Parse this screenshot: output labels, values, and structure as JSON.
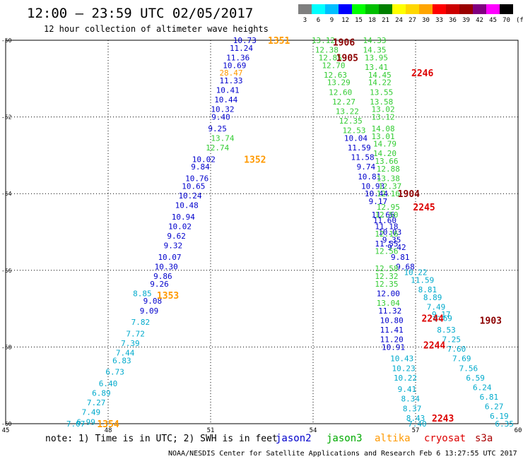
{
  "header": {
    "title": "12:00 – 23:59 UTC 02/05/2017",
    "subtitle": "12 hour collection of altimeter wave heights"
  },
  "colorbar": {
    "labels": [
      "3",
      "6",
      "9",
      "12",
      "15",
      "18",
      "21",
      "24",
      "27",
      "30",
      "33",
      "36",
      "39",
      "42",
      "45",
      "70"
    ],
    "unit": "(ft)",
    "colors": [
      "#7f7f7f",
      "#00ffff",
      "#00bfff",
      "#0000ff",
      "#00ff00",
      "#00bf00",
      "#008000",
      "#ffff00",
      "#ffd700",
      "#ffa500",
      "#ff0000",
      "#cc0000",
      "#990000",
      "#800080",
      "#ff00ff",
      "#000000"
    ]
  },
  "footer": {
    "note": "note: 1) Time is in UTC; 2) SWH is in feet",
    "legend": [
      {
        "name": "jason2",
        "color": "#0000cc"
      },
      {
        "name": "jason3",
        "color": "#00aa00"
      },
      {
        "name": "altika",
        "color": "#ff9900"
      },
      {
        "name": "cryosat",
        "color": "#dd0000"
      },
      {
        "name": "s3a",
        "color": "#aa0000"
      }
    ],
    "credit": "NOAA/NESDIS Center for Satellite Applications and Research    Feb  6 13:27:55 UTC 2017"
  },
  "chart_data": {
    "type": "scatter",
    "x_ticks": [
      "45",
      "48",
      "51",
      "54",
      "57",
      "60"
    ],
    "y_ticks": [
      "-50",
      "-52",
      "-54",
      "-56",
      "-58",
      "-60"
    ],
    "xlim": [
      45,
      60
    ],
    "ylim": [
      -60,
      -50
    ],
    "grid": true,
    "series": [
      {
        "name": "jason2",
        "color": "#0000cc",
        "points": [
          {
            "x": 52.0,
            "y": -50.0,
            "label": "10.73"
          },
          {
            "x": 51.9,
            "y": -50.2,
            "label": "11.24"
          },
          {
            "x": 51.8,
            "y": -50.45,
            "label": "11.36"
          },
          {
            "x": 51.7,
            "y": -50.65,
            "label": "10.69"
          },
          {
            "x": 51.6,
            "y": -51.05,
            "label": "11.33"
          },
          {
            "x": 51.5,
            "y": -51.3,
            "label": "10.41"
          },
          {
            "x": 51.45,
            "y": -51.55,
            "label": "10.44"
          },
          {
            "x": 51.35,
            "y": -51.8,
            "label": "10.32"
          },
          {
            "x": 51.3,
            "y": -52.0,
            "label": "9.40"
          },
          {
            "x": 51.2,
            "y": -52.3,
            "label": "9.25"
          },
          {
            "x": 50.8,
            "y": -53.1,
            "label": "10.02"
          },
          {
            "x": 50.7,
            "y": -53.3,
            "label": "9.84"
          },
          {
            "x": 50.6,
            "y": -53.6,
            "label": "10.76"
          },
          {
            "x": 50.5,
            "y": -53.8,
            "label": "10.65"
          },
          {
            "x": 50.4,
            "y": -54.05,
            "label": "10.24"
          },
          {
            "x": 50.3,
            "y": -54.3,
            "label": "10.48"
          },
          {
            "x": 50.2,
            "y": -54.6,
            "label": "10.94"
          },
          {
            "x": 50.1,
            "y": -54.85,
            "label": "10.02"
          },
          {
            "x": 50.0,
            "y": -55.1,
            "label": "9.62"
          },
          {
            "x": 49.9,
            "y": -55.35,
            "label": "9.32"
          },
          {
            "x": 49.8,
            "y": -55.65,
            "label": "10.07"
          },
          {
            "x": 49.7,
            "y": -55.9,
            "label": "10.30"
          },
          {
            "x": 49.6,
            "y": -56.15,
            "label": "9.86"
          },
          {
            "x": 49.5,
            "y": -56.35,
            "label": "9.26"
          },
          {
            "x": 49.3,
            "y": -56.8,
            "label": "9.08"
          },
          {
            "x": 49.2,
            "y": -57.05,
            "label": "9.09"
          },
          {
            "x": 55.25,
            "y": -52.55,
            "label": "10.04"
          },
          {
            "x": 55.35,
            "y": -52.8,
            "label": "11.59"
          },
          {
            "x": 55.45,
            "y": -53.05,
            "label": "11.58"
          },
          {
            "x": 55.55,
            "y": -53.3,
            "label": "9.74"
          },
          {
            "x": 55.65,
            "y": -53.55,
            "label": "10.81"
          },
          {
            "x": 55.75,
            "y": -53.8,
            "label": "10.93"
          },
          {
            "x": 55.85,
            "y": -54.0,
            "label": "10.44"
          },
          {
            "x": 55.9,
            "y": -54.2,
            "label": "9.17"
          },
          {
            "x": 56.05,
            "y": -54.55,
            "label": "11.66"
          },
          {
            "x": 56.1,
            "y": -54.7,
            "label": "11.60"
          },
          {
            "x": 56.15,
            "y": -54.85,
            "label": "11.18"
          },
          {
            "x": 56.25,
            "y": -55.0,
            "label": "10.03"
          },
          {
            "x": 56.3,
            "y": -55.2,
            "label": "9.35"
          },
          {
            "x": 56.15,
            "y": -55.3,
            "label": "11.55"
          },
          {
            "x": 56.45,
            "y": -55.4,
            "label": "9.42"
          },
          {
            "x": 56.55,
            "y": -55.65,
            "label": "9.81"
          },
          {
            "x": 56.7,
            "y": -55.9,
            "label": "9.68"
          },
          {
            "x": 56.2,
            "y": -56.6,
            "label": "12.00"
          },
          {
            "x": 56.25,
            "y": -57.05,
            "label": "11.32"
          },
          {
            "x": 56.3,
            "y": -57.3,
            "label": "10.80"
          },
          {
            "x": 56.3,
            "y": -57.55,
            "label": "11.41"
          },
          {
            "x": 56.3,
            "y": -57.8,
            "label": "11.20"
          },
          {
            "x": 56.35,
            "y": -58.0,
            "label": "10.91"
          }
        ]
      },
      {
        "name": "jason3",
        "color": "#33cc33",
        "points": [
          {
            "x": 54.3,
            "y": -50.0,
            "label": "13.12"
          },
          {
            "x": 54.4,
            "y": -50.25,
            "label": "12.38"
          },
          {
            "x": 54.5,
            "y": -50.45,
            "label": "12.85"
          },
          {
            "x": 54.6,
            "y": -50.65,
            "label": "12.70"
          },
          {
            "x": 54.65,
            "y": -50.9,
            "label": "12.63"
          },
          {
            "x": 54.75,
            "y": -51.1,
            "label": "13.29"
          },
          {
            "x": 54.8,
            "y": -51.35,
            "label": "12.60"
          },
          {
            "x": 54.9,
            "y": -51.6,
            "label": "12.27"
          },
          {
            "x": 55.0,
            "y": -51.85,
            "label": "13.22"
          },
          {
            "x": 55.1,
            "y": -52.1,
            "label": "12.35"
          },
          {
            "x": 55.2,
            "y": -52.35,
            "label": "12.53"
          },
          {
            "x": 55.8,
            "y": -50.0,
            "label": "14.33"
          },
          {
            "x": 55.8,
            "y": -50.25,
            "label": "14.35"
          },
          {
            "x": 55.85,
            "y": -50.45,
            "label": "13.95"
          },
          {
            "x": 55.85,
            "y": -50.7,
            "label": "13.41"
          },
          {
            "x": 55.95,
            "y": -50.9,
            "label": "14.45"
          },
          {
            "x": 55.95,
            "y": -51.1,
            "label": "14.22"
          },
          {
            "x": 56.0,
            "y": -51.35,
            "label": "13.55"
          },
          {
            "x": 56.0,
            "y": -51.6,
            "label": "13.58"
          },
          {
            "x": 56.05,
            "y": -51.8,
            "label": "13.02"
          },
          {
            "x": 56.05,
            "y": -52.0,
            "label": "13.12"
          },
          {
            "x": 56.05,
            "y": -52.3,
            "label": "14.08"
          },
          {
            "x": 56.05,
            "y": -52.5,
            "label": "13.01"
          },
          {
            "x": 56.1,
            "y": -52.7,
            "label": "14.79"
          },
          {
            "x": 56.1,
            "y": -52.95,
            "label": "14.20"
          },
          {
            "x": 56.15,
            "y": -53.15,
            "label": "13.66"
          },
          {
            "x": 56.2,
            "y": -53.35,
            "label": "12.88"
          },
          {
            "x": 56.2,
            "y": -53.6,
            "label": "13.38"
          },
          {
            "x": 56.25,
            "y": -53.8,
            "label": "12.37"
          },
          {
            "x": 56.2,
            "y": -54.0,
            "label": "12.16"
          },
          {
            "x": 56.2,
            "y": -54.35,
            "label": "12.95"
          },
          {
            "x": 56.15,
            "y": -54.55,
            "label": "12.50"
          },
          {
            "x": 56.15,
            "y": -55.05,
            "label": "12.16"
          },
          {
            "x": 56.15,
            "y": -55.5,
            "label": "12.56"
          },
          {
            "x": 56.15,
            "y": -55.95,
            "label": "12.58"
          },
          {
            "x": 56.15,
            "y": -56.15,
            "label": "12.32"
          },
          {
            "x": 56.15,
            "y": -56.35,
            "label": "12.35"
          },
          {
            "x": 56.2,
            "y": -56.85,
            "label": "13.04"
          },
          {
            "x": 51.35,
            "y": -52.55,
            "label": "13.74"
          },
          {
            "x": 51.2,
            "y": -52.8,
            "label": "12.74"
          }
        ]
      },
      {
        "name": "altika",
        "color": "#ff9900",
        "points": [
          {
            "x": 51.6,
            "y": -50.85,
            "label": "28.47"
          }
        ]
      },
      {
        "name": "cryosat",
        "color": "#00aacc",
        "points": [
          {
            "x": 49.0,
            "y": -56.6,
            "label": "8.85"
          },
          {
            "x": 48.95,
            "y": -57.35,
            "label": "7.82"
          },
          {
            "x": 48.8,
            "y": -57.65,
            "label": "7.72"
          },
          {
            "x": 48.65,
            "y": -57.9,
            "label": "7.39"
          },
          {
            "x": 48.5,
            "y": -58.15,
            "label": "7.44"
          },
          {
            "x": 48.4,
            "y": -58.35,
            "label": "6.83"
          },
          {
            "x": 48.2,
            "y": -58.65,
            "label": "6.73"
          },
          {
            "x": 48.0,
            "y": -58.95,
            "label": "6.40"
          },
          {
            "x": 47.8,
            "y": -59.2,
            "label": "6.89"
          },
          {
            "x": 47.65,
            "y": -59.45,
            "label": "7.27"
          },
          {
            "x": 47.5,
            "y": -59.7,
            "label": "7.49"
          },
          {
            "x": 47.35,
            "y": -59.95,
            "label": "6.99"
          },
          {
            "x": 47.05,
            "y": -60.0,
            "label": "7.07"
          },
          {
            "x": 57.0,
            "y": -56.05,
            "label": "10.22"
          },
          {
            "x": 57.2,
            "y": -56.25,
            "label": "11.59"
          },
          {
            "x": 57.35,
            "y": -56.5,
            "label": "8.81"
          },
          {
            "x": 57.5,
            "y": -56.7,
            "label": "8.89"
          },
          {
            "x": 57.6,
            "y": -56.95,
            "label": "7.49"
          },
          {
            "x": 57.8,
            "y": -57.25,
            "label": "8.69"
          },
          {
            "x": 57.9,
            "y": -57.55,
            "label": "8.53"
          },
          {
            "x": 58.05,
            "y": -57.8,
            "label": "7.25"
          },
          {
            "x": 58.2,
            "y": -58.05,
            "label": "7.60"
          },
          {
            "x": 58.35,
            "y": -58.3,
            "label": "7.69"
          },
          {
            "x": 58.55,
            "y": -58.55,
            "label": "7.56"
          },
          {
            "x": 58.75,
            "y": -58.8,
            "label": "6.59"
          },
          {
            "x": 58.95,
            "y": -59.05,
            "label": "6.24"
          },
          {
            "x": 59.15,
            "y": -59.3,
            "label": "6.81"
          },
          {
            "x": 59.3,
            "y": -59.55,
            "label": "6.27"
          },
          {
            "x": 59.45,
            "y": -59.8,
            "label": "6.19"
          },
          {
            "x": 59.6,
            "y": -60.0,
            "label": "6.35"
          },
          {
            "x": 56.6,
            "y": -58.3,
            "label": "10.43"
          },
          {
            "x": 56.65,
            "y": -58.55,
            "label": "10.23"
          },
          {
            "x": 56.7,
            "y": -58.8,
            "label": "10.22"
          },
          {
            "x": 56.75,
            "y": -59.1,
            "label": "9.41"
          },
          {
            "x": 56.85,
            "y": -59.35,
            "label": "8.34"
          },
          {
            "x": 56.9,
            "y": -59.6,
            "label": "8.37"
          },
          {
            "x": 57.0,
            "y": -59.85,
            "label": "8.43"
          },
          {
            "x": 57.05,
            "y": -60.0,
            "label": "7.40"
          },
          {
            "x": 57.75,
            "y": -57.15,
            "label": "9.17"
          }
        ]
      }
    ],
    "time_labels": [
      {
        "x": 53.0,
        "y": -50.0,
        "label": "1351",
        "color": "#ff9900"
      },
      {
        "x": 52.3,
        "y": -53.1,
        "label": "1352",
        "color": "#ff9900"
      },
      {
        "x": 49.75,
        "y": -56.65,
        "label": "1353",
        "color": "#ff9900"
      },
      {
        "x": 48.0,
        "y": -60.0,
        "label": "1354",
        "color": "#ff9900"
      },
      {
        "x": 54.9,
        "y": -50.05,
        "label": "1906",
        "color": "#8b0000"
      },
      {
        "x": 55.0,
        "y": -50.45,
        "label": "1905",
        "color": "#8b0000"
      },
      {
        "x": 56.8,
        "y": -54.0,
        "label": "1904",
        "color": "#8b0000"
      },
      {
        "x": 59.2,
        "y": -57.3,
        "label": "1903",
        "color": "#8b0000"
      },
      {
        "x": 57.2,
        "y": -50.85,
        "label": "2246",
        "color": "#dd0000"
      },
      {
        "x": 57.25,
        "y": -54.35,
        "label": "2245",
        "color": "#dd0000"
      },
      {
        "x": 57.55,
        "y": -57.95,
        "label": "2244",
        "color": "#dd0000"
      },
      {
        "x": 57.5,
        "y": -57.25,
        "label": "2244",
        "color": "#dd0000"
      },
      {
        "x": 57.8,
        "y": -59.85,
        "label": "2243",
        "color": "#dd0000"
      }
    ]
  }
}
